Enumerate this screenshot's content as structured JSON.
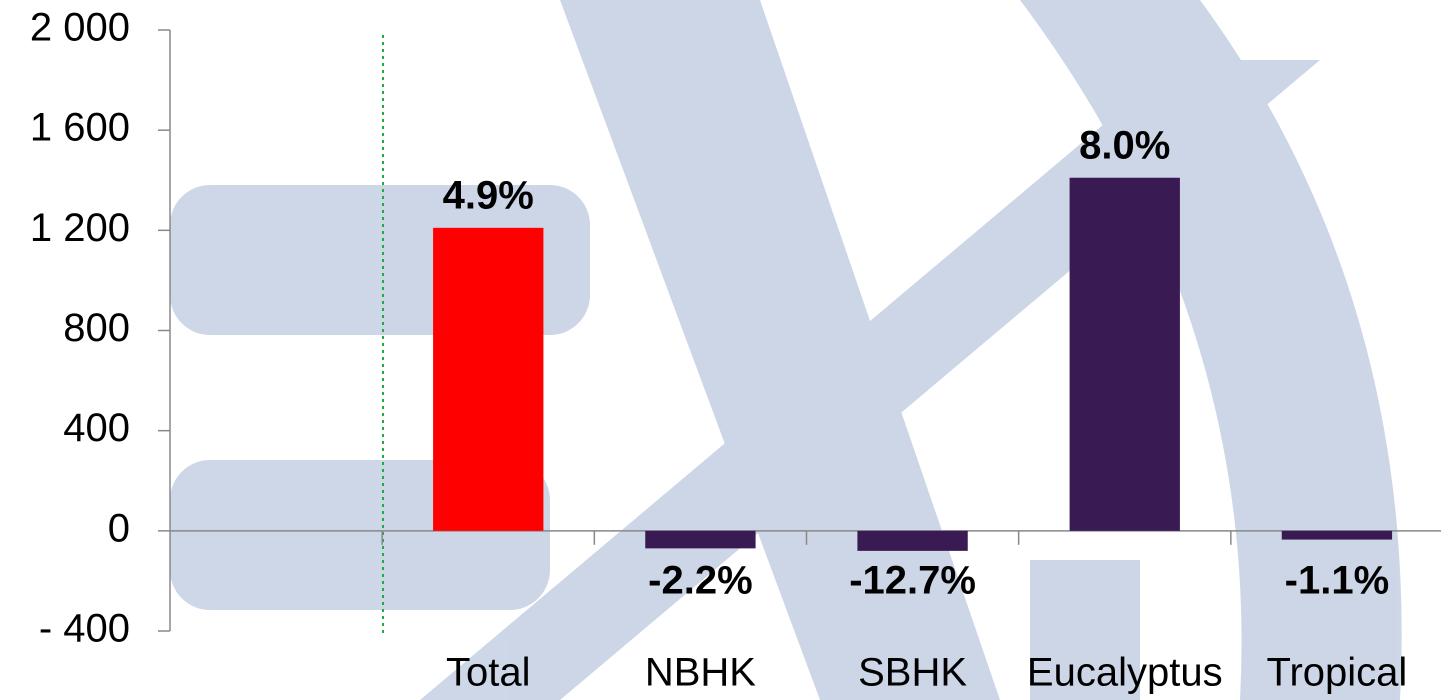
{
  "chart_data": {
    "type": "bar",
    "categories": [
      null,
      "Total",
      "NBHK",
      "SBHK",
      "Eucalyptus",
      "Tropical"
    ],
    "values": [
      null,
      1210,
      -70,
      -80,
      1410,
      -35
    ],
    "bar_labels": [
      null,
      "4.9%",
      "-2.2%",
      "-12.7%",
      "8.0%",
      "-1.1%"
    ],
    "colors": [
      null,
      "#ff0000",
      "#3a1a52",
      "#3a1a52",
      "#3a1a52",
      "#3a1a52"
    ],
    "ylim": [
      -400,
      2000
    ],
    "yticks": [
      {
        "value": -400,
        "label": "- 400"
      },
      0,
      400,
      800,
      {
        "value": 1200,
        "label": "1 200"
      },
      {
        "value": 1600,
        "label": "1 600"
      },
      {
        "value": 2000,
        "label": "2 000"
      }
    ]
  }
}
